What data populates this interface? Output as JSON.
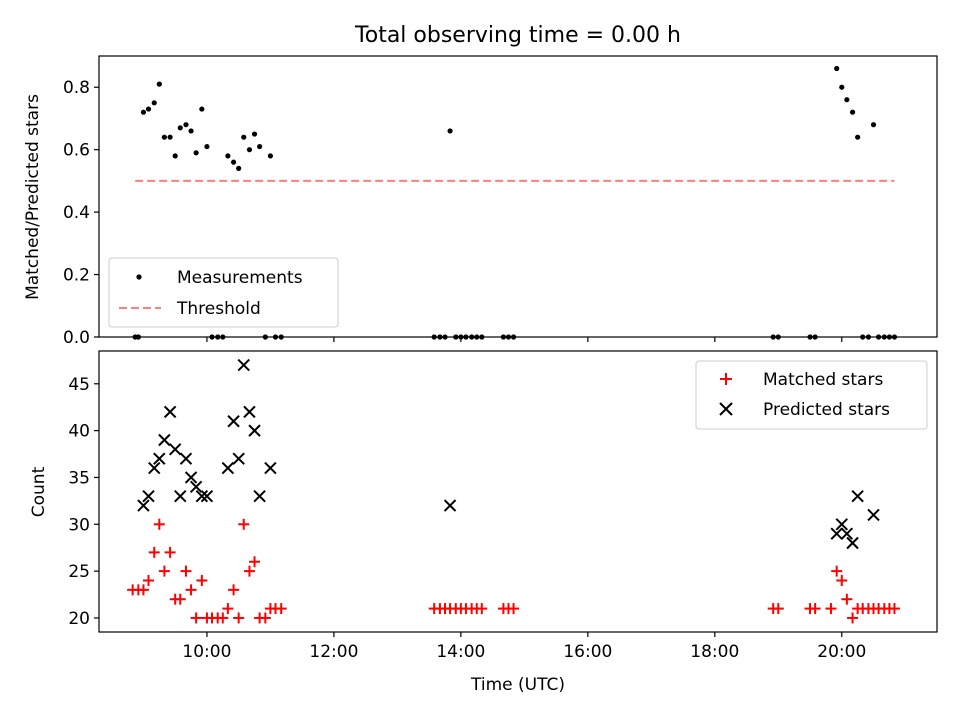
{
  "figure": {
    "title": "Total observing time = 0.00 h",
    "xlabel": "Time (UTC)",
    "xticks": [
      "10:00",
      "12:00",
      "14:00",
      "16:00",
      "18:00",
      "20:00"
    ]
  },
  "chart_data": [
    {
      "type": "scatter",
      "name": "ratio-panel",
      "ylabel": "Matched/Predicted stars",
      "xlim_hours": [
        8.3,
        21.5
      ],
      "ylim": [
        0,
        0.9
      ],
      "yticks": [
        0.0,
        0.2,
        0.4,
        0.6,
        0.8
      ],
      "grid": false,
      "legend_position": "lower-left",
      "legend": [
        "Measurements",
        "Threshold"
      ],
      "threshold": {
        "value": 0.5,
        "x_hours": [
          8.87,
          20.83
        ],
        "color": "#ff7f7f"
      },
      "measurements": {
        "color": "#000000",
        "x_hours": [
          8.87,
          8.92,
          9.0,
          9.08,
          9.17,
          9.25,
          9.33,
          9.42,
          9.5,
          9.58,
          9.67,
          9.75,
          9.83,
          9.92,
          10.0,
          10.08,
          10.17,
          10.25,
          10.33,
          10.42,
          10.5,
          10.58,
          10.67,
          10.75,
          10.83,
          10.92,
          11.0,
          11.08,
          11.17,
          13.58,
          13.67,
          13.75,
          13.83,
          13.92,
          14.0,
          14.08,
          14.17,
          14.25,
          14.33,
          14.67,
          14.75,
          14.83,
          18.92,
          19.0,
          19.5,
          19.58,
          19.92,
          20.0,
          20.08,
          20.17,
          20.25,
          20.33,
          20.42,
          20.5,
          20.58,
          20.67,
          20.75,
          20.83
        ],
        "values": [
          0.0,
          0.0,
          0.72,
          0.73,
          0.75,
          0.81,
          0.64,
          0.64,
          0.58,
          0.67,
          0.68,
          0.66,
          0.59,
          0.73,
          0.61,
          0.0,
          0.0,
          0.0,
          0.58,
          0.56,
          0.54,
          0.64,
          0.6,
          0.65,
          0.61,
          0.0,
          0.58,
          0.0,
          0.0,
          0.0,
          0.0,
          0.0,
          0.66,
          0.0,
          0.0,
          0.0,
          0.0,
          0.0,
          0.0,
          0.0,
          0.0,
          0.0,
          0.0,
          0.0,
          0.0,
          0.0,
          0.86,
          0.8,
          0.76,
          0.72,
          0.64,
          0.0,
          0.0,
          0.68,
          0.0,
          0.0,
          0.0,
          0.0
        ]
      }
    },
    {
      "type": "scatter",
      "name": "count-panel",
      "ylabel": "Count",
      "xlabel": "Time (UTC)",
      "xlim_hours": [
        8.3,
        21.5
      ],
      "ylim": [
        18.5,
        48.5
      ],
      "yticks": [
        20,
        25,
        30,
        35,
        40,
        45
      ],
      "grid": false,
      "legend_position": "upper-right",
      "legend": [
        "Matched stars",
        "Predicted stars"
      ],
      "matched": {
        "color": "#ff0000",
        "marker": "+",
        "points": [
          [
            8.83,
            23
          ],
          [
            8.92,
            23
          ],
          [
            9.0,
            23
          ],
          [
            9.08,
            24
          ],
          [
            9.17,
            27
          ],
          [
            9.25,
            30
          ],
          [
            9.33,
            25
          ],
          [
            9.42,
            27
          ],
          [
            9.5,
            22
          ],
          [
            9.58,
            22
          ],
          [
            9.67,
            25
          ],
          [
            9.75,
            23
          ],
          [
            9.83,
            20
          ],
          [
            9.92,
            24
          ],
          [
            10.0,
            20
          ],
          [
            10.08,
            20
          ],
          [
            10.17,
            20
          ],
          [
            10.25,
            20
          ],
          [
            10.33,
            21
          ],
          [
            10.42,
            23
          ],
          [
            10.5,
            20
          ],
          [
            10.58,
            30
          ],
          [
            10.67,
            25
          ],
          [
            10.75,
            26
          ],
          [
            10.83,
            20
          ],
          [
            10.92,
            20
          ],
          [
            11.0,
            21
          ],
          [
            11.08,
            21
          ],
          [
            11.17,
            21
          ],
          [
            13.58,
            21
          ],
          [
            13.67,
            21
          ],
          [
            13.75,
            21
          ],
          [
            13.83,
            21
          ],
          [
            13.92,
            21
          ],
          [
            14.0,
            21
          ],
          [
            14.08,
            21
          ],
          [
            14.17,
            21
          ],
          [
            14.25,
            21
          ],
          [
            14.33,
            21
          ],
          [
            14.67,
            21
          ],
          [
            14.75,
            21
          ],
          [
            14.83,
            21
          ],
          [
            18.92,
            21
          ],
          [
            19.0,
            21
          ],
          [
            19.5,
            21
          ],
          [
            19.58,
            21
          ],
          [
            19.83,
            21
          ],
          [
            19.92,
            25
          ],
          [
            20.0,
            24
          ],
          [
            20.08,
            22
          ],
          [
            20.17,
            20
          ],
          [
            20.25,
            21
          ],
          [
            20.33,
            21
          ],
          [
            20.42,
            21
          ],
          [
            20.5,
            21
          ],
          [
            20.58,
            21
          ],
          [
            20.67,
            21
          ],
          [
            20.75,
            21
          ],
          [
            20.83,
            21
          ]
        ]
      },
      "predicted": {
        "color": "#000000",
        "marker": "x",
        "points": [
          [
            9.0,
            32
          ],
          [
            9.08,
            33
          ],
          [
            9.17,
            36
          ],
          [
            9.25,
            37
          ],
          [
            9.33,
            39
          ],
          [
            9.42,
            42
          ],
          [
            9.5,
            38
          ],
          [
            9.58,
            33
          ],
          [
            9.67,
            37
          ],
          [
            9.75,
            35
          ],
          [
            9.83,
            34
          ],
          [
            9.92,
            33
          ],
          [
            10.0,
            33
          ],
          [
            10.33,
            36
          ],
          [
            10.42,
            41
          ],
          [
            10.5,
            37
          ],
          [
            10.58,
            47
          ],
          [
            10.67,
            42
          ],
          [
            10.75,
            40
          ],
          [
            10.83,
            33
          ],
          [
            11.0,
            36
          ],
          [
            13.83,
            32
          ],
          [
            19.92,
            29
          ],
          [
            20.0,
            30
          ],
          [
            20.08,
            29
          ],
          [
            20.17,
            28
          ],
          [
            20.25,
            33
          ],
          [
            20.5,
            31
          ]
        ]
      }
    }
  ]
}
